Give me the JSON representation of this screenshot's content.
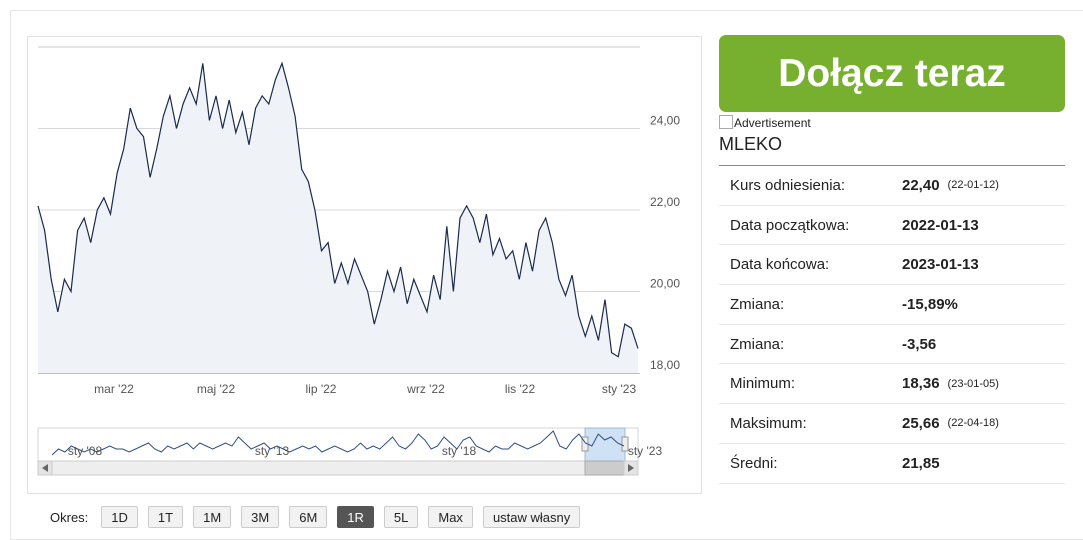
{
  "chart": {
    "type": "line",
    "ylim": [
      18,
      26
    ],
    "yticks": [
      {
        "value": 18,
        "label": "18,00"
      },
      {
        "value": 20,
        "label": "20,00"
      },
      {
        "value": 22,
        "label": "22,00"
      },
      {
        "value": 24,
        "label": "24,00"
      }
    ],
    "xlabels": [
      "mar '22",
      "maj '22",
      "lip '22",
      "wrz '22",
      "lis '22",
      "sty '23"
    ],
    "series": [
      {
        "color": "#1b2a4e",
        "values": [
          22.1,
          21.5,
          20.3,
          19.5,
          20.3,
          20.0,
          21.5,
          21.8,
          21.2,
          22.0,
          22.3,
          21.9,
          22.9,
          23.5,
          24.5,
          24.0,
          23.8,
          22.8,
          23.5,
          24.3,
          24.8,
          24.0,
          24.6,
          25.0,
          24.6,
          25.6,
          24.2,
          24.8,
          24.0,
          24.7,
          23.9,
          24.4,
          23.6,
          24.5,
          24.8,
          24.6,
          25.2,
          25.6,
          25.0,
          24.3,
          23.0,
          22.7,
          22.0,
          21.0,
          21.2,
          20.2,
          20.7,
          20.2,
          20.8,
          20.4,
          20.0,
          19.2,
          19.8,
          20.5,
          20.0,
          20.6,
          19.7,
          20.3,
          19.9,
          19.5,
          20.4,
          19.8,
          21.6,
          20.0,
          21.8,
          22.1,
          21.8,
          21.2,
          21.9,
          20.9,
          21.3,
          20.8,
          21.0,
          20.3,
          21.2,
          20.5,
          21.5,
          21.8,
          21.2,
          20.3,
          19.9,
          20.4,
          19.4,
          18.9,
          19.4,
          18.8,
          19.8,
          18.5,
          18.4,
          19.2,
          19.1,
          18.6
        ]
      }
    ],
    "navigator": {
      "color": "#2d4f86",
      "labels": [
        "sty '08",
        "sty '13",
        "sty '18",
        "sty '23"
      ],
      "values": [
        10,
        12,
        11,
        13,
        12,
        11,
        12,
        11,
        12,
        13,
        12,
        12,
        11,
        12,
        13,
        14,
        12,
        11,
        13,
        12,
        13,
        14,
        12,
        14,
        13,
        12,
        13,
        14,
        13,
        16,
        14,
        12,
        13,
        14,
        12,
        13,
        12,
        11,
        12,
        13,
        12,
        13,
        11,
        12,
        13,
        12,
        11,
        12,
        14,
        12,
        13,
        12,
        14,
        16,
        13,
        12,
        14,
        17,
        15,
        12,
        13,
        16,
        14,
        12,
        15,
        16,
        13,
        12,
        11,
        13,
        12,
        12,
        14,
        13,
        12,
        13,
        14,
        16,
        18,
        13,
        12,
        15,
        17,
        14,
        13,
        17,
        15,
        16,
        14,
        13
      ]
    }
  },
  "ad": {
    "button": "Dołącz teraz",
    "image_alt": "Advertisement"
  },
  "ticker": "MLEKO",
  "table": [
    {
      "label": "Kurs odniesienia:",
      "value": "22,40",
      "date": "(22-01-12)"
    },
    {
      "label": "Data początkowa:",
      "value": "2022-01-13"
    },
    {
      "label": "Data końcowa:",
      "value": "2023-01-13"
    },
    {
      "label": "Zmiana:",
      "value": "-15,89%"
    },
    {
      "label": "Zmiana:",
      "value": "-3,56"
    },
    {
      "label": "Minimum:",
      "value": "18,36",
      "date": "(23-01-05)"
    },
    {
      "label": "Maksimum:",
      "value": "25,66",
      "date": "(22-04-18)"
    },
    {
      "label": "Średni:",
      "value": "21,85"
    }
  ],
  "period": {
    "label": "Okres:",
    "buttons": [
      "1D",
      "1T",
      "1M",
      "3M",
      "6M",
      "1R",
      "5L",
      "Max",
      "ustaw własny"
    ],
    "active": 5
  }
}
